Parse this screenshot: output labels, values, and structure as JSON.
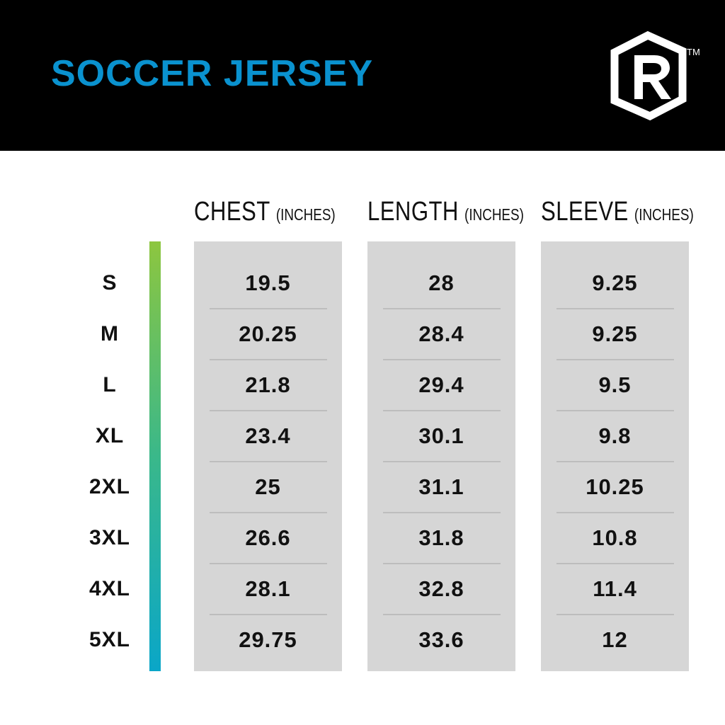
{
  "header": {
    "title": "SOCCER JERSEY",
    "logo": {
      "icon": "r-hexagon-logo-icon",
      "letter": "R",
      "trademark": "TM"
    },
    "background_color": "#000000",
    "title_color": "#0a92cf"
  },
  "table": {
    "columns": [
      {
        "title": "CHEST",
        "unit": "(INCHES)"
      },
      {
        "title": "LENGTH",
        "unit": "(INCHES)"
      },
      {
        "title": "SLEEVE",
        "unit": "(INCHES)"
      }
    ],
    "sizes": [
      "S",
      "M",
      "L",
      "XL",
      "2XL",
      "3XL",
      "4XL",
      "5XL"
    ],
    "values": [
      [
        "19.5",
        "20.25",
        "21.8",
        "23.4",
        "25",
        "26.6",
        "28.1",
        "29.75"
      ],
      [
        "28",
        "28.4",
        "29.4",
        "30.1",
        "31.1",
        "31.8",
        "32.8",
        "33.6"
      ],
      [
        "9.25",
        "9.25",
        "9.5",
        "9.8",
        "10.25",
        "10.8",
        "11.4",
        "12"
      ]
    ],
    "column_background": "#d6d6d6",
    "gradient_colors": [
      "#8dc63f",
      "#0aa6c8"
    ]
  }
}
